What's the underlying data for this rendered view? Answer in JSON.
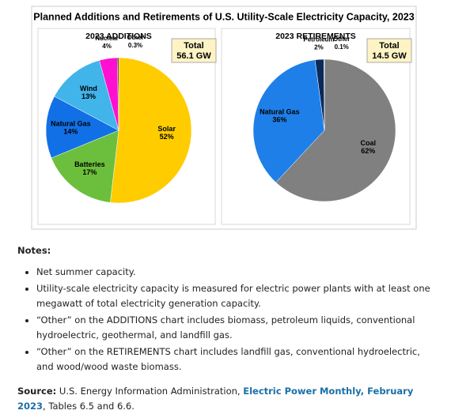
{
  "title": "Planned Additions and Retirements of U.S. Utility-Scale Electricity Capacity, 2023",
  "chart_data": [
    {
      "type": "pie",
      "title": "2023 ADDITIONS",
      "total_label": "Total",
      "total_value": "56.1 GW",
      "categories": [
        "Solar",
        "Batteries",
        "Natural Gas",
        "Wind",
        "Nuclear",
        "Other"
      ],
      "values": [
        52,
        17,
        14,
        13,
        4,
        0.3
      ],
      "value_labels": [
        "52%",
        "17%",
        "14%",
        "13%",
        "4%",
        "0.3%"
      ],
      "colors": [
        "#ffcc00",
        "#6cbf3c",
        "#1270e6",
        "#41b4ea",
        "#ff10d0",
        "#222222"
      ]
    },
    {
      "type": "pie",
      "title": "2023 RETIREMENTS",
      "total_label": "Total",
      "total_value": "14.5 GW",
      "categories": [
        "Coal",
        "Natural Gas",
        "Petroleum",
        "Other"
      ],
      "values": [
        62,
        36,
        2,
        0.1
      ],
      "value_labels": [
        "62%",
        "36%",
        "2%",
        "0.1%"
      ],
      "colors": [
        "#808080",
        "#1e7fe8",
        "#0b2a5c",
        "#cccccc"
      ]
    }
  ],
  "notes": {
    "heading": "Notes:",
    "items": [
      "Net summer capacity.",
      "Utility-scale electricity capacity is measured for electric power plants with at least one megawatt of total electricity generation capacity.",
      "“Other” on the ADDITIONS chart includes biomass, petroleum liquids, conventional hydroelectric, geothermal, and landfill gas.",
      "“Other” on the RETIREMENTS chart includes landfill gas, conventional hydroelectric, and wood/wood waste biomass."
    ]
  },
  "source": {
    "label": "Source:",
    "text": "U.S. Energy Information Administration,",
    "link": "Electric Power Monthly, February 2023",
    "suffix": ", Tables 6.5 and 6.6."
  }
}
